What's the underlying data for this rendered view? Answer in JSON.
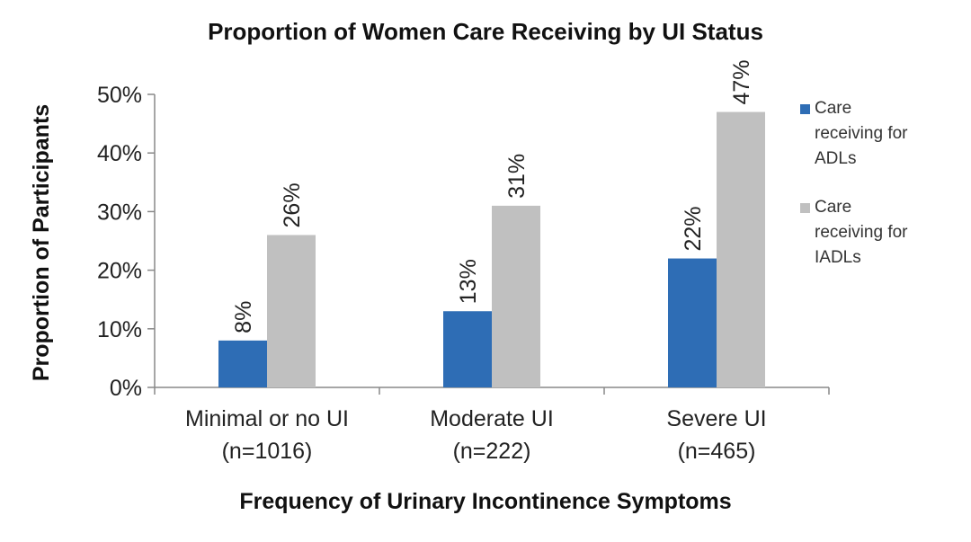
{
  "chart_data": {
    "type": "bar",
    "title": "Proportion of Women Care Receiving by UI Status",
    "xlabel": "Frequency of Urinary Incontinence Symptoms",
    "ylabel": "Proportion of Participants",
    "categories": [
      [
        "Minimal or no UI",
        "(n=1016)"
      ],
      [
        "Moderate UI",
        "(n=222)"
      ],
      [
        "Severe UI",
        "(n=465)"
      ]
    ],
    "series": [
      {
        "name": [
          "Care",
          "receiving for",
          "ADLs"
        ],
        "values": [
          8,
          13,
          22
        ],
        "labels": [
          "8%",
          "13%",
          "22%"
        ],
        "color": "#2e6db5"
      },
      {
        "name": [
          "Care",
          "receiving for",
          "IADLs"
        ],
        "values": [
          26,
          31,
          47
        ],
        "labels": [
          "26%",
          "31%",
          "47%"
        ],
        "color": "#c0c0c0"
      }
    ],
    "ylim": [
      0,
      50
    ],
    "yticks": [
      0,
      10,
      20,
      30,
      40,
      50
    ],
    "ytick_labels": [
      "0%",
      "10%",
      "20%",
      "30%",
      "40%",
      "50%"
    ],
    "grid": false,
    "legend_position": "right"
  }
}
